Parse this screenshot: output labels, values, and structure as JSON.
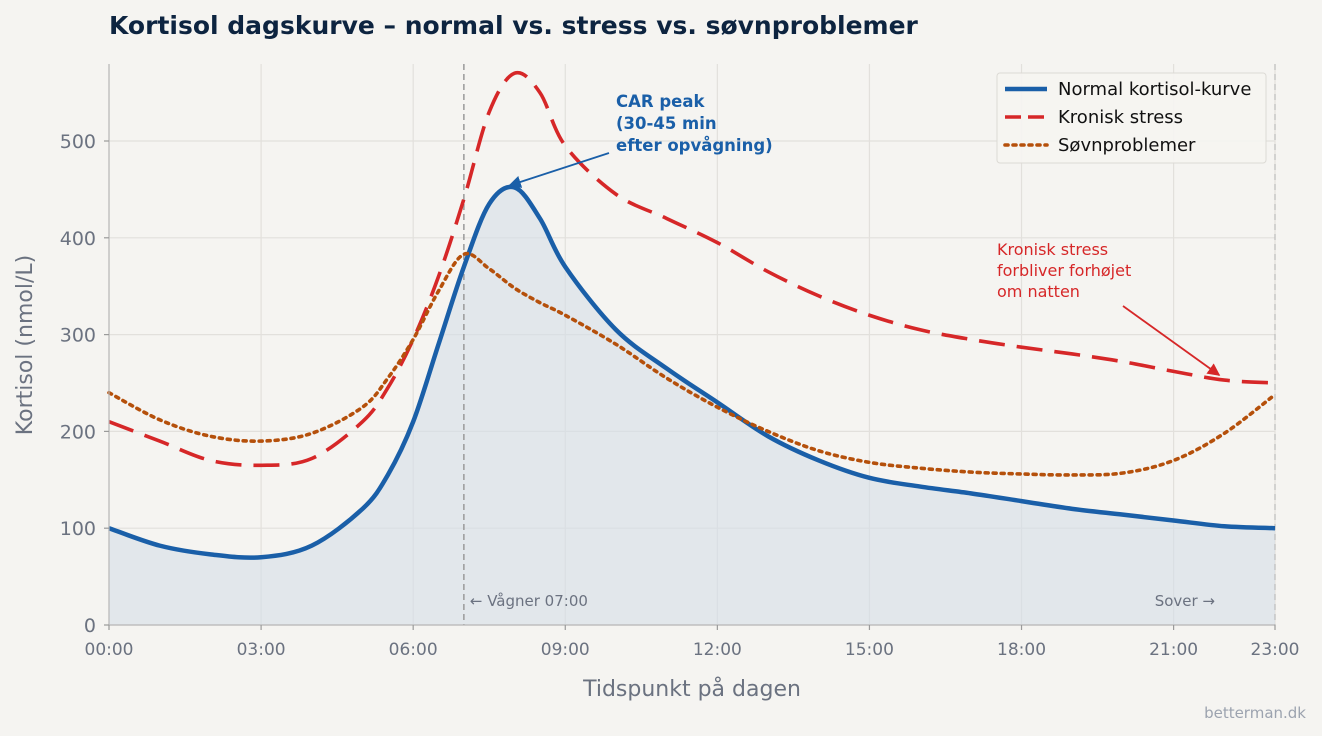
{
  "chart_data": {
    "type": "line",
    "title": "Kortisol dagskurve – normal vs. stress vs. søvnproblemer",
    "xlabel": "Tidspunkt på dagen",
    "ylabel": "Kortisol (nmol/L)",
    "xlim": [
      0,
      23
    ],
    "ylim": [
      0,
      580
    ],
    "x_ticks": [
      {
        "value": 0,
        "label": "00:00"
      },
      {
        "value": 3,
        "label": "03:00"
      },
      {
        "value": 6,
        "label": "06:00"
      },
      {
        "value": 9,
        "label": "09:00"
      },
      {
        "value": 12,
        "label": "12:00"
      },
      {
        "value": 15,
        "label": "15:00"
      },
      {
        "value": 18,
        "label": "18:00"
      },
      {
        "value": 21,
        "label": "21:00"
      },
      {
        "value": 23,
        "label": "23:00"
      }
    ],
    "y_ticks": [
      0,
      100,
      200,
      300,
      400,
      500
    ],
    "grid": true,
    "legend_position": "top-right",
    "series": [
      {
        "name": "Normal kortisol-kurve",
        "color": "#1a5fa8",
        "style": "solid",
        "filled": true,
        "x": [
          0,
          1,
          2,
          3,
          4,
          5,
          5.5,
          6,
          6.5,
          7,
          7.5,
          8,
          8.5,
          9,
          10,
          11,
          12,
          13,
          14,
          15,
          16,
          17,
          18,
          19,
          20,
          21,
          22,
          23
        ],
        "y": [
          100,
          82,
          73,
          70,
          82,
          120,
          155,
          210,
          290,
          370,
          435,
          452,
          420,
          370,
          305,
          265,
          230,
          195,
          170,
          152,
          143,
          136,
          128,
          120,
          114,
          108,
          102,
          100
        ]
      },
      {
        "name": "Kronisk stress",
        "color": "#d62728",
        "style": "dashed",
        "filled": false,
        "x": [
          0,
          1,
          2,
          3,
          4,
          5,
          5.5,
          6,
          6.5,
          7,
          7.5,
          8,
          8.5,
          9,
          10,
          11,
          12,
          13,
          14,
          15,
          16,
          17,
          18,
          19,
          20,
          21,
          22,
          23
        ],
        "y": [
          210,
          190,
          170,
          165,
          172,
          210,
          245,
          295,
          360,
          440,
          530,
          570,
          550,
          495,
          445,
          420,
          395,
          365,
          340,
          320,
          305,
          295,
          287,
          280,
          272,
          262,
          253,
          250
        ]
      },
      {
        "name": "Søvnproblemer",
        "color": "#b5500b",
        "style": "dotted",
        "filled": false,
        "x": [
          0,
          1,
          2,
          3,
          4,
          5,
          5.5,
          6,
          6.5,
          7,
          7.5,
          8,
          8.5,
          9,
          10,
          11,
          12,
          13,
          14,
          15,
          16,
          17,
          18,
          19,
          20,
          21,
          22,
          23
        ],
        "y": [
          240,
          212,
          195,
          190,
          198,
          225,
          255,
          295,
          345,
          383,
          368,
          348,
          333,
          320,
          290,
          255,
          225,
          200,
          180,
          168,
          162,
          158,
          156,
          155,
          157,
          170,
          198,
          238
        ]
      }
    ],
    "vlines": [
      {
        "x": 7,
        "label": "← Vågner 07:00"
      },
      {
        "x": 23,
        "label": "Sover →"
      }
    ],
    "annotations": [
      {
        "lines": [
          "CAR peak",
          "(30-45 min",
          "efter opvågning)"
        ],
        "arrow_to": [
          7.9,
          452
        ]
      },
      {
        "lines": [
          "Kronisk stress",
          "forbliver forhøjet",
          "om natten"
        ],
        "arrow_to": [
          21.9,
          255
        ]
      }
    ]
  },
  "credit": "betterman.dk"
}
